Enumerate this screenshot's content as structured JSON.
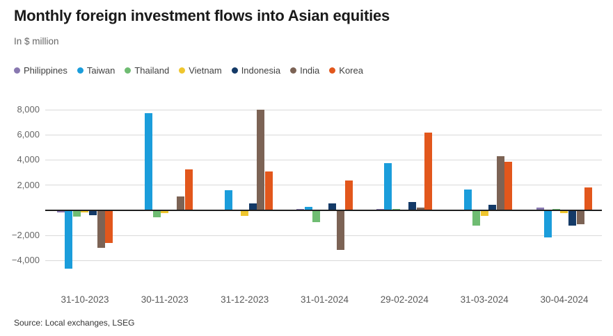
{
  "header": {
    "title": "Monthly foreign investment flows into Asian equities",
    "subtitle": "In $ million"
  },
  "source": "Source: Local exchanges, LSEG",
  "colors": {
    "title_text": "#1a1a1a",
    "subtitle_text": "#666666",
    "axis_text": "#666666",
    "gridline": "#d9d9d9",
    "zero_line": "#1f1f1f",
    "background": "#ffffff"
  },
  "chart_data": {
    "type": "bar",
    "title": "Monthly foreign investment flows into Asian equities",
    "subtitle": "In $ million",
    "xlabel": "",
    "ylabel": "In $ million",
    "legend_position": "top",
    "grid": true,
    "categories": [
      "31-10-2023",
      "30-11-2023",
      "31-12-2023",
      "31-01-2024",
      "29-02-2024",
      "31-03-2024",
      "30-04-2024"
    ],
    "series": [
      {
        "name": "Philippines",
        "color": "#8878B0",
        "values": [
          -150,
          0,
          0,
          100,
          100,
          0,
          200
        ]
      },
      {
        "name": "Taiwan",
        "color": "#1B9DDB",
        "values": [
          -4650,
          7700,
          1550,
          250,
          3700,
          1600,
          -2150
        ]
      },
      {
        "name": "Thailand",
        "color": "#6FBC72",
        "values": [
          -460,
          -550,
          0,
          -900,
          60,
          -1220,
          100
        ]
      },
      {
        "name": "Vietnam",
        "color": "#EFC62E",
        "values": [
          -130,
          -200,
          -450,
          0,
          0,
          -440,
          -200
        ]
      },
      {
        "name": "Indonesia",
        "color": "#143A67",
        "values": [
          -400,
          0,
          500,
          500,
          650,
          420,
          -1220
        ]
      },
      {
        "name": "India",
        "color": "#7C6355",
        "values": [
          -2980,
          1050,
          8000,
          -3160,
          200,
          4290,
          -1070
        ]
      },
      {
        "name": "Korea",
        "color": "#E2571C",
        "values": [
          -2560,
          3250,
          3050,
          2350,
          6150,
          3820,
          1800
        ]
      }
    ],
    "y_axis": {
      "range": [
        -5600,
        8800
      ],
      "ticks": [
        8000,
        6000,
        4000,
        2000,
        -2000,
        -4000
      ],
      "tick_labels": [
        "8,000",
        "6,000",
        "4,000",
        "2,000",
        "−2,000",
        "−4,000"
      ]
    }
  }
}
